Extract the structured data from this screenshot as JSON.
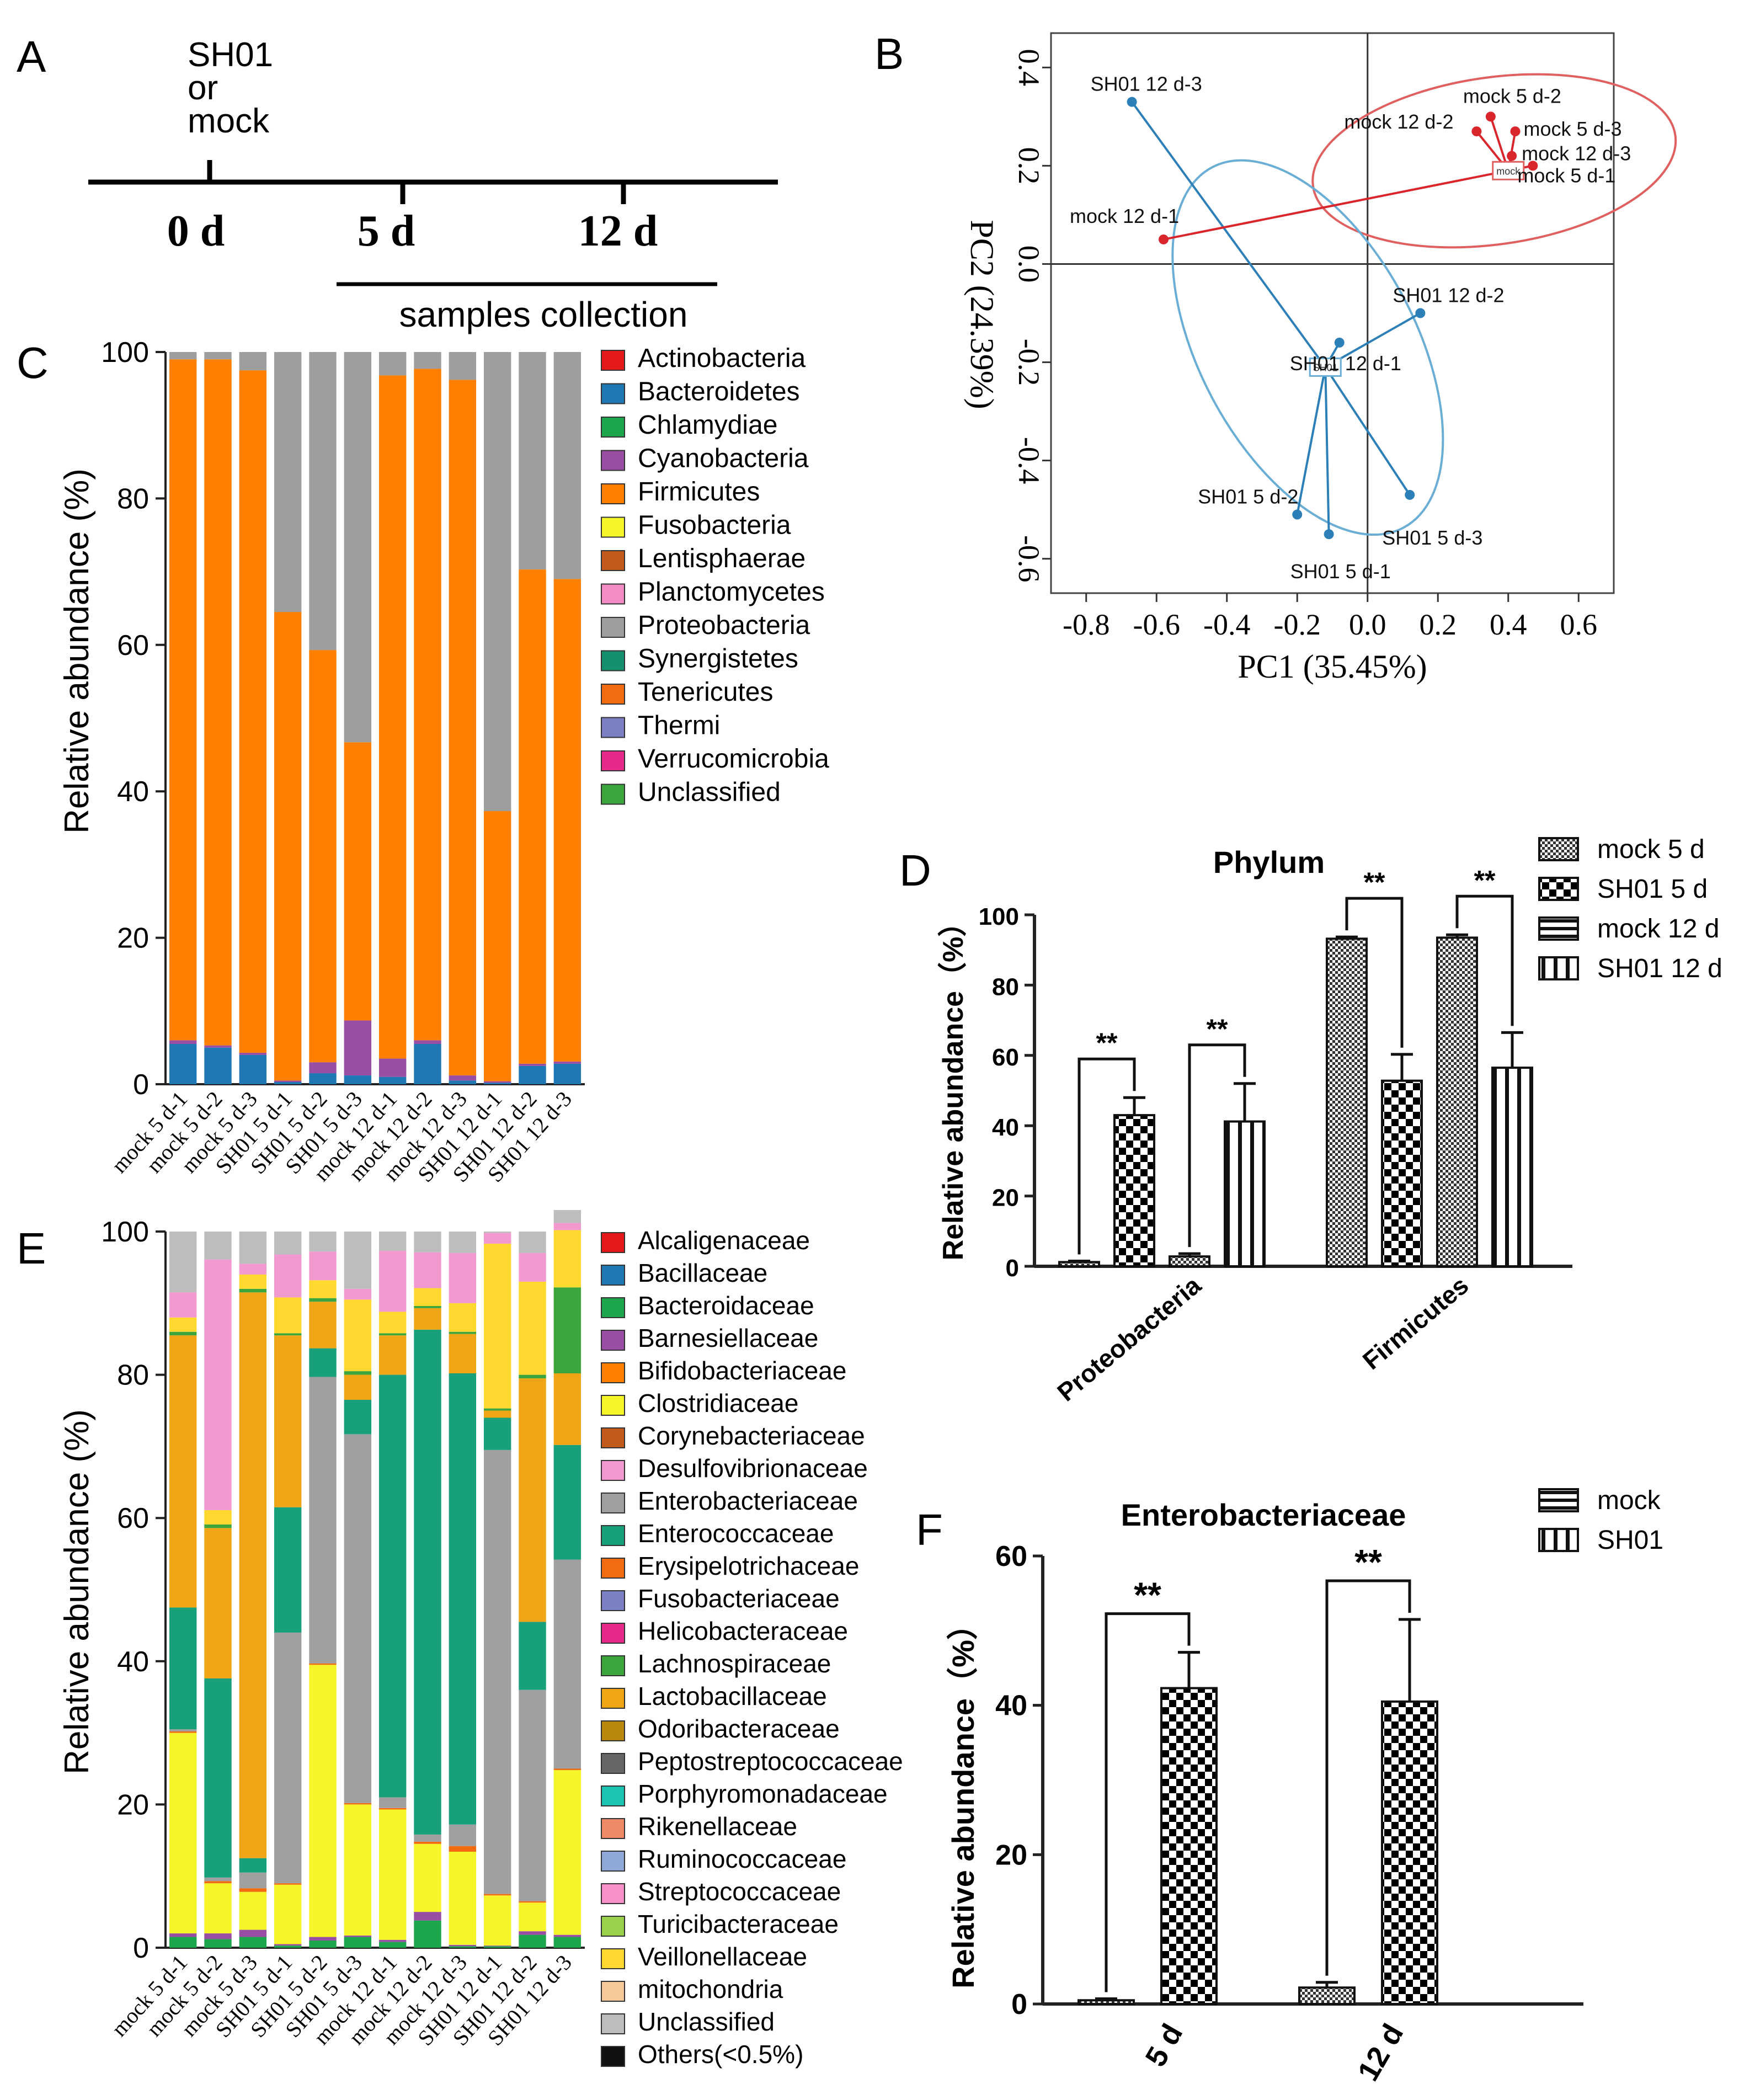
{
  "panels": {
    "A": {
      "label": "A",
      "treatment_lines": [
        "SH01",
        "or",
        "mock"
      ],
      "days": [
        "0 d",
        "5 d",
        "12 d"
      ],
      "collection_label": "samples collection"
    },
    "B": {
      "label": "B"
    },
    "C": {
      "label": "C"
    },
    "D": {
      "label": "D"
    },
    "E": {
      "label": "E"
    },
    "F": {
      "label": "F"
    }
  },
  "colors": {
    "mock": "#d9262c",
    "sh01": "#2d7fb8",
    "ellipse_mock": "#e06060",
    "ellipse_sh01": "#6aaed6"
  },
  "chart_data": [
    {
      "id": "B",
      "type": "scatter",
      "title": "",
      "xlabel": "PC1 (35.45%)",
      "ylabel": "PC2 (24.39%)",
      "xlim": [
        -0.9,
        0.7
      ],
      "ylim": [
        -0.67,
        0.47
      ],
      "xticks": [
        "-0.8",
        "-0.6",
        "-0.4",
        "-0.2",
        "0.0",
        "0.2",
        "0.4",
        "0.6"
      ],
      "xtick_values": [
        -0.8,
        -0.6,
        -0.4,
        -0.2,
        0.0,
        0.2,
        0.4,
        0.6
      ],
      "yticks": [
        "0.4",
        "0.2",
        "0.0",
        "-0.2",
        "-0.4",
        "-0.6"
      ],
      "ytick_values": [
        0.4,
        0.2,
        0.0,
        -0.2,
        -0.4,
        -0.6
      ],
      "groups": [
        {
          "name": "mock",
          "centroid_label": "mock",
          "centroid": [
            0.4,
            0.19
          ],
          "ellipse": {
            "cx": 0.36,
            "cy": 0.21,
            "rx": 0.52,
            "ry": 0.17,
            "rot": -8
          }
        },
        {
          "name": "SH01",
          "centroid_label": "SH01",
          "centroid": [
            -0.12,
            -0.21
          ],
          "ellipse": {
            "cx": -0.17,
            "cy": -0.17,
            "rx": 0.58,
            "ry": 0.22,
            "rot": 62
          }
        }
      ],
      "points": [
        {
          "label": "SH01 12 d-3",
          "group": "SH01",
          "x": -0.67,
          "y": 0.33
        },
        {
          "label": "mock 12 d-1",
          "group": "mock",
          "x": -0.58,
          "y": 0.05
        },
        {
          "label": "mock 5 d-2",
          "group": "mock",
          "x": 0.35,
          "y": 0.3
        },
        {
          "label": "mock 12 d-2",
          "group": "mock",
          "x": 0.31,
          "y": 0.27
        },
        {
          "label": "mock 5 d-3",
          "group": "mock",
          "x": 0.42,
          "y": 0.27
        },
        {
          "label": "mock 12 d-3",
          "group": "mock",
          "x": 0.41,
          "y": 0.22
        },
        {
          "label": "mock 5 d-1",
          "group": "mock",
          "x": 0.47,
          "y": 0.2
        },
        {
          "label": "SH01 12 d-2",
          "group": "SH01",
          "x": 0.15,
          "y": -0.1
        },
        {
          "label": "SH01 12 d-1",
          "group": "SH01",
          "x": -0.08,
          "y": -0.16
        },
        {
          "label": "SH01 5 d-2",
          "group": "SH01",
          "x": -0.2,
          "y": -0.51
        },
        {
          "label": "SH01 5 d-1",
          "group": "SH01",
          "x": -0.11,
          "y": -0.55
        },
        {
          "label": "SH01 5 d-3",
          "group": "SH01",
          "x": 0.12,
          "y": -0.47
        }
      ]
    },
    {
      "id": "C",
      "type": "bar",
      "stacked": true,
      "title": "",
      "xlabel": "",
      "ylabel": "Relative abundance (%)",
      "ylim": [
        0,
        100
      ],
      "yticks": [
        "0",
        "20",
        "40",
        "60",
        "80",
        "100"
      ],
      "categories": [
        "mock 5 d-1",
        "mock 5 d-2",
        "mock 5 d-3",
        "SH01 5 d-1",
        "SH01 5 d-2",
        "SH01 5 d-3",
        "mock 12 d-1",
        "mock 12 d-2",
        "mock 12 d-3",
        "SH01 12 d-1",
        "SH01 12 d-2",
        "SH01 12 d-3"
      ],
      "legend": [
        {
          "name": "Actinobacteria",
          "color": "#e4191c"
        },
        {
          "name": "Bacteroidetes",
          "color": "#1f78b4"
        },
        {
          "name": "Chlamydiae",
          "color": "#1ea64c"
        },
        {
          "name": "Cyanobacteria",
          "color": "#984ea3"
        },
        {
          "name": "Firmicutes",
          "color": "#ff7f00"
        },
        {
          "name": "Fusobacteria",
          "color": "#f5f52a"
        },
        {
          "name": "Lentisphaerae",
          "color": "#c25a1c"
        },
        {
          "name": "Planctomycetes",
          "color": "#f28cc4"
        },
        {
          "name": "Proteobacteria",
          "color": "#9e9e9e"
        },
        {
          "name": "Synergistetes",
          "color": "#14906e"
        },
        {
          "name": "Tenericutes",
          "color": "#f26b0f"
        },
        {
          "name": "Thermi",
          "color": "#7b7fc4"
        },
        {
          "name": "Verrucomicrobia",
          "color": "#e7298a"
        },
        {
          "name": "Unclassified",
          "color": "#3ca53c"
        }
      ],
      "series": [
        {
          "name": "Bacteroidetes",
          "values": [
            5.5,
            5.0,
            4.0,
            0.3,
            1.5,
            1.2,
            1.0,
            5.5,
            0.5,
            0.2,
            2.5,
            2.8
          ]
        },
        {
          "name": "Cyanobacteria",
          "values": [
            0.5,
            0.3,
            0.3,
            0.2,
            1.5,
            7.5,
            2.5,
            0.5,
            0.7,
            0.2,
            0.3,
            0.3
          ]
        },
        {
          "name": "Firmicutes",
          "values": [
            93.0,
            93.7,
            93.2,
            64.0,
            56.3,
            38.0,
            93.3,
            91.7,
            95.0,
            36.9,
            67.5,
            65.9
          ]
        },
        {
          "name": "Proteobacteria",
          "values": [
            1.0,
            1.0,
            2.5,
            35.5,
            40.7,
            53.3,
            3.2,
            2.3,
            3.8,
            62.7,
            29.7,
            31.0
          ]
        }
      ]
    },
    {
      "id": "D",
      "type": "bar",
      "title": "Phylum",
      "xlabel": "",
      "ylabel": "Relative abundance（%）",
      "ylim": [
        0,
        100
      ],
      "yticks": [
        "0",
        "20",
        "40",
        "60",
        "80",
        "100"
      ],
      "categories": [
        "Proteobacteria",
        "Firmicutes"
      ],
      "series": [
        {
          "name": "mock 5 d",
          "values": [
            1.2,
            93.2
          ],
          "err": [
            0.3,
            0.5
          ]
        },
        {
          "name": "SH01 5 d",
          "values": [
            43.0,
            52.8
          ],
          "err": [
            5.0,
            7.5
          ]
        },
        {
          "name": "mock 12 d",
          "values": [
            2.8,
            93.5
          ],
          "err": [
            0.8,
            0.8
          ]
        },
        {
          "name": "SH01 12 d",
          "values": [
            41.2,
            56.5
          ],
          "err": [
            10.8,
            10.0
          ]
        }
      ],
      "significance": "**"
    },
    {
      "id": "E",
      "type": "bar",
      "stacked": true,
      "title": "",
      "xlabel": "",
      "ylabel": "Relative abundance (%)",
      "ylim": [
        0,
        100
      ],
      "yticks": [
        "0",
        "20",
        "40",
        "60",
        "80",
        "100"
      ],
      "categories": [
        "mock 5 d-1",
        "mock 5 d-2",
        "mock 5 d-3",
        "SH01 5 d-1",
        "SH01 5 d-2",
        "SH01 5 d-3",
        "mock 12 d-1",
        "mock 12 d-2",
        "mock 12 d-3",
        "SH01 12 d-1",
        "SH01 12 d-2",
        "SH01 12 d-3"
      ],
      "legend": [
        {
          "name": "Alcaligenaceae",
          "color": "#e4191c"
        },
        {
          "name": "Bacillaceae",
          "color": "#1f78b4"
        },
        {
          "name": "Bacteroidaceae",
          "color": "#1ea64c"
        },
        {
          "name": "Barnesiellaceae",
          "color": "#984ea3"
        },
        {
          "name": "Bifidobacteriaceae",
          "color": "#ff7f00"
        },
        {
          "name": "Clostridiaceae",
          "color": "#f5f52a"
        },
        {
          "name": "Corynebacteriaceae",
          "color": "#c25a1c"
        },
        {
          "name": "Desulfovibrionaceae",
          "color": "#f29ad0"
        },
        {
          "name": "Enterobacteriaceae",
          "color": "#a0a0a0"
        },
        {
          "name": "Enterococcaceae",
          "color": "#17a079"
        },
        {
          "name": "Erysipelotrichaceae",
          "color": "#f26b0f"
        },
        {
          "name": "Fusobacteriaceae",
          "color": "#7b7fc4"
        },
        {
          "name": "Helicobacteraceae",
          "color": "#e7298a"
        },
        {
          "name": "Lachnospiraceae",
          "color": "#3ca53c"
        },
        {
          "name": "Lactobacillaceae",
          "color": "#f0a516"
        },
        {
          "name": "Odoribacteraceae",
          "color": "#b8860b"
        },
        {
          "name": "Peptostreptococcaceae",
          "color": "#666666"
        },
        {
          "name": "Porphyromonadaceae",
          "color": "#1bc4b0"
        },
        {
          "name": "Rikenellaceae",
          "color": "#f08a66"
        },
        {
          "name": "Ruminococcaceae",
          "color": "#8fa8d8"
        },
        {
          "name": "Streptococcaceae",
          "color": "#f590c8"
        },
        {
          "name": "Turicibacteraceae",
          "color": "#9ad14a"
        },
        {
          "name": "Veillonellaceae",
          "color": "#ffd92f"
        },
        {
          "name": "mitochondria",
          "color": "#f5c99a"
        },
        {
          "name": "Unclassified",
          "color": "#bdbdbd"
        },
        {
          "name": "Others(<0.5%)",
          "color": "#111111"
        }
      ],
      "series": [
        {
          "name": "Bacteroidaceae",
          "values": [
            1.5,
            1.2,
            1.5,
            0.3,
            1.0,
            1.5,
            0.8,
            3.8,
            0.2,
            0.2,
            1.8,
            1.5
          ]
        },
        {
          "name": "Barnesiellaceae",
          "values": [
            0.5,
            0.8,
            1.0,
            0.2,
            0.5,
            0.2,
            0.3,
            1.2,
            0.2,
            0.1,
            0.5,
            0.3
          ]
        },
        {
          "name": "Clostridiaceae",
          "values": [
            28.0,
            7.0,
            5.3,
            8.3,
            38.0,
            18.3,
            18.2,
            9.5,
            13.0,
            7.0,
            4.0,
            23.0
          ]
        },
        {
          "name": "Erysipelotrichaceae",
          "values": [
            0.2,
            0.3,
            0.5,
            0.2,
            0.2,
            0.2,
            0.2,
            0.3,
            0.8,
            0.2,
            0.2,
            0.2
          ]
        },
        {
          "name": "Enterobacteriaceae",
          "values": [
            0.3,
            0.5,
            2.2,
            35.0,
            40.0,
            51.5,
            1.5,
            1.0,
            3.0,
            62.0,
            29.5,
            29.2
          ]
        },
        {
          "name": "Enterococcaceae",
          "values": [
            17.0,
            27.8,
            2.0,
            17.5,
            4.0,
            4.8,
            59.0,
            70.5,
            63.0,
            4.5,
            9.5,
            16.0
          ]
        },
        {
          "name": "Lactobacillaceae",
          "values": [
            38.0,
            21.0,
            79.0,
            24.0,
            6.5,
            3.5,
            5.5,
            3.0,
            5.5,
            1.0,
            34.0,
            10.0
          ]
        },
        {
          "name": "Lachnospiraceae",
          "values": [
            0.5,
            0.5,
            0.5,
            0.3,
            0.5,
            0.5,
            0.3,
            0.3,
            0.3,
            0.3,
            0.5,
            12.0
          ]
        },
        {
          "name": "Veillonellaceae",
          "values": [
            2.0,
            2.0,
            2.0,
            5.0,
            2.5,
            10.0,
            3.0,
            2.5,
            4.0,
            23.0,
            13.0,
            8.0
          ]
        },
        {
          "name": "Desulfovibrionaceae",
          "values": [
            3.5,
            35.0,
            1.5,
            6.0,
            4.0,
            1.5,
            8.5,
            5.0,
            7.0,
            1.5,
            4.0,
            1.0
          ]
        },
        {
          "name": "Unclassified",
          "values": [
            8.5,
            3.9,
            4.5,
            3.2,
            2.8,
            8.0,
            2.7,
            2.9,
            3.0,
            0.2,
            3.0,
            1.8
          ]
        }
      ]
    },
    {
      "id": "F",
      "type": "bar",
      "title": "Enterobacteriaceae",
      "xlabel": "",
      "ylabel": "Relative abundance（%）",
      "ylim": [
        0,
        60
      ],
      "yticks": [
        "0",
        "20",
        "40",
        "60"
      ],
      "categories": [
        "5 d",
        "12 d"
      ],
      "series": [
        {
          "name": "mock",
          "values": [
            0.5,
            2.2
          ],
          "err": [
            0.2,
            0.7
          ]
        },
        {
          "name": "SH01",
          "values": [
            42.3,
            40.5
          ],
          "err": [
            4.8,
            11.0
          ]
        }
      ],
      "significance": "**"
    }
  ]
}
